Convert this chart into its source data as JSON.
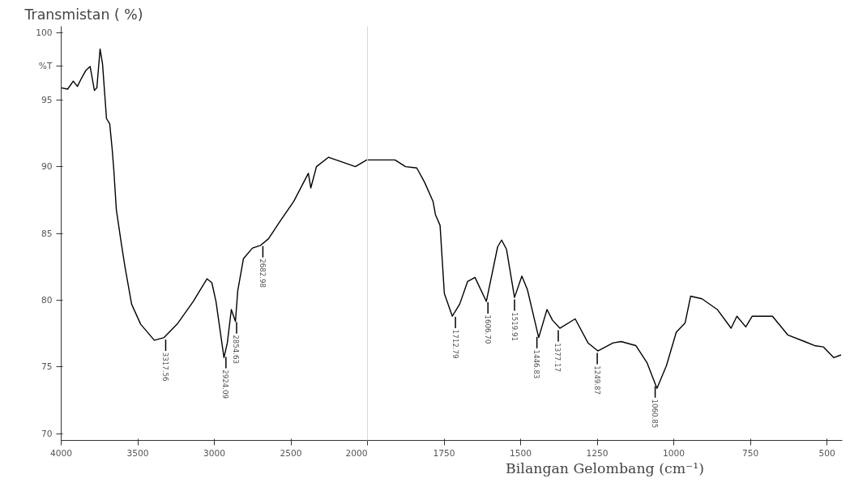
{
  "chart_data": [
    {
      "type": "line",
      "ylabel": "Transmistan ( %)",
      "xlim": [
        4000,
        2000
      ],
      "xticks": [
        4000,
        3500,
        3000,
        2500,
        2000
      ],
      "ylim": [
        69.5,
        100.5
      ],
      "yticks": [
        70,
        75,
        80,
        85,
        90,
        95,
        {
          "value": 97.5,
          "label": "%T"
        },
        100
      ],
      "grid": false,
      "marker": "none",
      "line_style": "solid",
      "series": [
        {
          "color": "#000000",
          "x": [
            4000,
            3958,
            3921,
            3894,
            3868,
            3839,
            3811,
            3783,
            3767,
            3746,
            3730,
            3704,
            3683,
            3667,
            3656,
            3640,
            3608,
            3582,
            3540,
            3481,
            3392,
            3328,
            3243,
            3138,
            3048,
            3016,
            2989,
            2937,
            2915,
            2889,
            2862,
            2847,
            2810,
            2751,
            2698,
            2646,
            2571,
            2481,
            2386,
            2370,
            2333,
            2254,
            2079,
            2005,
            2000
          ],
          "values": [
            95.9,
            95.8,
            96.4,
            96.0,
            96.6,
            97.2,
            97.5,
            95.7,
            95.9,
            98.8,
            97.7,
            93.6,
            93.2,
            91.3,
            89.7,
            86.8,
            84.3,
            82.4,
            79.7,
            78.2,
            77.0,
            77.2,
            78.2,
            79.9,
            81.6,
            81.3,
            79.9,
            75.7,
            76.8,
            79.3,
            78.4,
            80.7,
            83.1,
            83.9,
            84.1,
            84.6,
            85.9,
            87.4,
            89.5,
            88.4,
            90.0,
            90.7,
            90.0,
            90.5,
            90.5
          ]
        }
      ],
      "annotations": [
        {
          "text": "3317.56",
          "x": 3317.56,
          "y": 77.2
        },
        {
          "text": "2924.09",
          "x": 2924.09,
          "y": 75.9
        },
        {
          "text": "2854.63",
          "x": 2854.63,
          "y": 78.5
        },
        {
          "text": "2682.98",
          "x": 2682.98,
          "y": 84.2
        }
      ]
    },
    {
      "type": "line",
      "tick_labels": "x",
      "xlabel": "Bilangan Gelombang (cm⁻¹)",
      "xlim": [
        2000,
        450
      ],
      "xticks": [
        {
          "value": 2000,
          "label": null
        },
        1750,
        1500,
        1250,
        1000,
        750,
        500
      ],
      "ylim": [
        69.5,
        100.5
      ],
      "grid": false,
      "marker": "none",
      "line_style": "solid",
      "series": [
        {
          "color": "#000000",
          "x": [
            2000,
            1910,
            1876,
            1839,
            1813,
            1786,
            1778,
            1763,
            1749,
            1723,
            1699,
            1673,
            1649,
            1612,
            1575,
            1562,
            1546,
            1520,
            1496,
            1478,
            1441,
            1414,
            1396,
            1372,
            1322,
            1280,
            1248,
            1198,
            1172,
            1124,
            1087,
            1055,
            1024,
            992,
            963,
            945,
            908,
            858,
            813,
            794,
            765,
            744,
            678,
            628,
            573,
            541,
            512,
            478,
            454
          ],
          "values": [
            90.5,
            90.5,
            90.0,
            89.9,
            88.8,
            87.4,
            86.4,
            85.6,
            80.5,
            78.8,
            79.7,
            81.4,
            81.7,
            79.9,
            84.0,
            84.5,
            83.8,
            80.2,
            81.8,
            80.8,
            77.2,
            79.3,
            78.5,
            77.9,
            78.6,
            76.8,
            76.2,
            76.8,
            76.9,
            76.6,
            75.3,
            73.4,
            75.1,
            77.6,
            78.3,
            80.3,
            80.1,
            79.3,
            77.9,
            78.8,
            78.0,
            78.8,
            78.8,
            77.4,
            76.9,
            76.6,
            76.5,
            75.7,
            75.9
          ]
        }
      ],
      "annotations": [
        {
          "text": "1712.79",
          "x": 1712.79,
          "y": 78.9
        },
        {
          "text": "1606.70",
          "x": 1606.7,
          "y": 80.0
        },
        {
          "text": "1519.91",
          "x": 1519.91,
          "y": 80.2
        },
        {
          "text": "1446.83",
          "x": 1446.83,
          "y": 77.4
        },
        {
          "text": "1377.17",
          "x": 1377.17,
          "y": 77.9
        },
        {
          "text": "1249.87",
          "x": 1249.87,
          "y": 76.2
        },
        {
          "text": "1060.85",
          "x": 1060.85,
          "y": 73.7
        }
      ]
    }
  ]
}
